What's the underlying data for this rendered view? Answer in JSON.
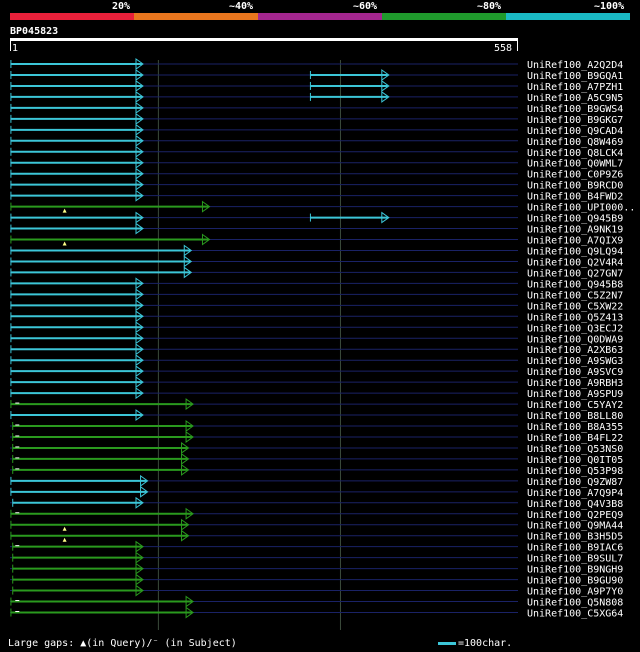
{
  "scale": {
    "labels": [
      "20%",
      "~40%",
      "~60%",
      "~80%",
      "~100%"
    ],
    "colors": [
      "#e8203a",
      "#e8761e",
      "#a4268f",
      "#1f9a2c",
      "#1ab9c4"
    ]
  },
  "query": {
    "id": "BP045823",
    "start": "1",
    "end": "558",
    "length": 558
  },
  "grid_positions": [
    0,
    163,
    363
  ],
  "colors": {
    "cyan": "#3cc6d8",
    "green": "#2a9a1e",
    "row_line": "#1a2266",
    "grid": "#3b4a3b"
  },
  "hits": [
    {
      "name": "UniRef100_A2Q2D4",
      "segs": [
        {
          "s": 1,
          "e": 145,
          "c": "cyan"
        }
      ]
    },
    {
      "name": "UniRef100_B9GQA1",
      "segs": [
        {
          "s": 1,
          "e": 145,
          "c": "cyan"
        },
        {
          "s": 330,
          "e": 415,
          "c": "cyan"
        }
      ]
    },
    {
      "name": "UniRef100_A7PZH1",
      "segs": [
        {
          "s": 1,
          "e": 145,
          "c": "cyan"
        },
        {
          "s": 330,
          "e": 415,
          "c": "cyan"
        }
      ]
    },
    {
      "name": "UniRef100_A5C9N5",
      "segs": [
        {
          "s": 1,
          "e": 145,
          "c": "cyan"
        },
        {
          "s": 330,
          "e": 415,
          "c": "cyan"
        }
      ]
    },
    {
      "name": "UniRef100_B9GWS4",
      "segs": [
        {
          "s": 1,
          "e": 145,
          "c": "cyan"
        }
      ]
    },
    {
      "name": "UniRef100_B9GKG7",
      "segs": [
        {
          "s": 1,
          "e": 145,
          "c": "cyan"
        }
      ]
    },
    {
      "name": "UniRef100_Q9CAD4",
      "segs": [
        {
          "s": 1,
          "e": 145,
          "c": "cyan"
        }
      ]
    },
    {
      "name": "UniRef100_Q8W469",
      "segs": [
        {
          "s": 1,
          "e": 145,
          "c": "cyan"
        }
      ]
    },
    {
      "name": "UniRef100_Q8LCK4",
      "segs": [
        {
          "s": 1,
          "e": 145,
          "c": "cyan"
        }
      ]
    },
    {
      "name": "UniRef100_Q0WML7",
      "segs": [
        {
          "s": 1,
          "e": 145,
          "c": "cyan"
        }
      ]
    },
    {
      "name": "UniRef100_C0P9Z6",
      "segs": [
        {
          "s": 1,
          "e": 145,
          "c": "cyan"
        }
      ]
    },
    {
      "name": "UniRef100_B9RCD0",
      "segs": [
        {
          "s": 1,
          "e": 145,
          "c": "cyan"
        }
      ]
    },
    {
      "name": "UniRef100_B4FWD2",
      "segs": [
        {
          "s": 1,
          "e": 145,
          "c": "cyan"
        }
      ]
    },
    {
      "name": "UniRef100_UPI000..",
      "segs": [
        {
          "s": 1,
          "e": 218,
          "c": "green"
        }
      ],
      "gap": 60
    },
    {
      "name": "UniRef100_Q945B9",
      "segs": [
        {
          "s": 1,
          "e": 145,
          "c": "cyan"
        },
        {
          "s": 330,
          "e": 415,
          "c": "cyan"
        }
      ]
    },
    {
      "name": "UniRef100_A9NK19",
      "segs": [
        {
          "s": 1,
          "e": 145,
          "c": "cyan"
        }
      ]
    },
    {
      "name": "UniRef100_A7QIX9",
      "segs": [
        {
          "s": 1,
          "e": 218,
          "c": "green"
        }
      ],
      "gap": 60
    },
    {
      "name": "UniRef100_Q9LQ94",
      "segs": [
        {
          "s": 1,
          "e": 198,
          "c": "cyan"
        }
      ]
    },
    {
      "name": "UniRef100_Q2V4R4",
      "segs": [
        {
          "s": 1,
          "e": 198,
          "c": "cyan"
        }
      ]
    },
    {
      "name": "UniRef100_Q27GN7",
      "segs": [
        {
          "s": 1,
          "e": 198,
          "c": "cyan"
        }
      ]
    },
    {
      "name": "UniRef100_Q945B8",
      "segs": [
        {
          "s": 1,
          "e": 145,
          "c": "cyan"
        }
      ]
    },
    {
      "name": "UniRef100_C5Z2N7",
      "segs": [
        {
          "s": 1,
          "e": 145,
          "c": "cyan"
        }
      ]
    },
    {
      "name": "UniRef100_C5XW22",
      "segs": [
        {
          "s": 1,
          "e": 145,
          "c": "cyan"
        }
      ]
    },
    {
      "name": "UniRef100_Q5Z413",
      "segs": [
        {
          "s": 1,
          "e": 145,
          "c": "cyan"
        }
      ]
    },
    {
      "name": "UniRef100_Q3ECJ2",
      "segs": [
        {
          "s": 1,
          "e": 145,
          "c": "cyan"
        }
      ]
    },
    {
      "name": "UniRef100_Q0DWA9",
      "segs": [
        {
          "s": 1,
          "e": 145,
          "c": "cyan"
        }
      ]
    },
    {
      "name": "UniRef100_A2XB63",
      "segs": [
        {
          "s": 1,
          "e": 145,
          "c": "cyan"
        }
      ]
    },
    {
      "name": "UniRef100_A9SWG3",
      "segs": [
        {
          "s": 1,
          "e": 145,
          "c": "cyan"
        }
      ]
    },
    {
      "name": "UniRef100_A9SVC9",
      "segs": [
        {
          "s": 1,
          "e": 145,
          "c": "cyan"
        }
      ]
    },
    {
      "name": "UniRef100_A9RBH3",
      "segs": [
        {
          "s": 1,
          "e": 145,
          "c": "cyan"
        }
      ]
    },
    {
      "name": "UniRef100_A9SPU9",
      "segs": [
        {
          "s": 1,
          "e": 145,
          "c": "cyan"
        }
      ]
    },
    {
      "name": "UniRef100_C5YAY2",
      "segs": [
        {
          "s": 1,
          "e": 200,
          "c": "green"
        }
      ],
      "sgap": 8
    },
    {
      "name": "UniRef100_B8LL80",
      "segs": [
        {
          "s": 1,
          "e": 145,
          "c": "cyan"
        }
      ]
    },
    {
      "name": "UniRef100_B8A355",
      "segs": [
        {
          "s": 3,
          "e": 200,
          "c": "green"
        }
      ],
      "sgap": 8
    },
    {
      "name": "UniRef100_B4FL22",
      "segs": [
        {
          "s": 3,
          "e": 200,
          "c": "green"
        }
      ],
      "sgap": 8
    },
    {
      "name": "UniRef100_Q53NS0",
      "segs": [
        {
          "s": 3,
          "e": 195,
          "c": "green"
        }
      ],
      "sgap": 8
    },
    {
      "name": "UniRef100_Q0IT05",
      "segs": [
        {
          "s": 3,
          "e": 195,
          "c": "green"
        }
      ],
      "sgap": 8
    },
    {
      "name": "UniRef100_Q53P98",
      "segs": [
        {
          "s": 3,
          "e": 195,
          "c": "green"
        }
      ],
      "sgap": 8
    },
    {
      "name": "UniRef100_Q9ZW87",
      "segs": [
        {
          "s": 1,
          "e": 150,
          "c": "cyan"
        }
      ]
    },
    {
      "name": "UniRef100_A7Q9P4",
      "segs": [
        {
          "s": 1,
          "e": 150,
          "c": "cyan"
        }
      ]
    },
    {
      "name": "UniRef100_Q4V3B8",
      "segs": [
        {
          "s": 3,
          "e": 145,
          "c": "cyan"
        }
      ]
    },
    {
      "name": "UniRef100_Q2PEQ9",
      "segs": [
        {
          "s": 1,
          "e": 200,
          "c": "green"
        }
      ],
      "sgap": 8
    },
    {
      "name": "UniRef100_Q9MA44",
      "segs": [
        {
          "s": 1,
          "e": 195,
          "c": "green"
        }
      ],
      "gap": 60
    },
    {
      "name": "UniRef100_B3H5D5",
      "segs": [
        {
          "s": 1,
          "e": 195,
          "c": "green"
        }
      ],
      "gap": 60
    },
    {
      "name": "UniRef100_B9IAC6",
      "segs": [
        {
          "s": 3,
          "e": 145,
          "c": "green"
        }
      ],
      "sgap": 8
    },
    {
      "name": "UniRef100_B9SUL7",
      "segs": [
        {
          "s": 3,
          "e": 145,
          "c": "green"
        }
      ]
    },
    {
      "name": "UniRef100_B9NGH9",
      "segs": [
        {
          "s": 3,
          "e": 145,
          "c": "green"
        }
      ]
    },
    {
      "name": "UniRef100_B9GU90",
      "segs": [
        {
          "s": 3,
          "e": 145,
          "c": "green"
        }
      ]
    },
    {
      "name": "UniRef100_A9P7Y0",
      "segs": [
        {
          "s": 3,
          "e": 145,
          "c": "green"
        }
      ]
    },
    {
      "name": "UniRef100_Q5N808",
      "segs": [
        {
          "s": 1,
          "e": 200,
          "c": "green"
        }
      ],
      "sgap": 8
    },
    {
      "name": "UniRef100_C5XG64",
      "segs": [
        {
          "s": 1,
          "e": 200,
          "c": "green"
        }
      ],
      "sgap": 8
    }
  ],
  "legend": {
    "gaps_text": "Large gaps: ▲(in Query)/⁻ (in Subject)",
    "scale_text": "=100char."
  }
}
